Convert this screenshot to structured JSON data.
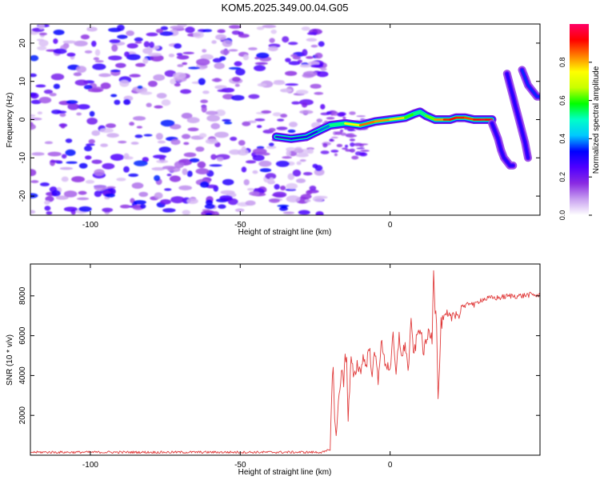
{
  "title": "KOM5.2025.349.00.04.G05",
  "chart_data": [
    {
      "type": "heatmap",
      "name": "spectrogram",
      "xlabel": "Height of straight line (km)",
      "ylabel": "Frequency (Hz)",
      "xlim": [
        -120,
        50
      ],
      "ylim": [
        -25,
        25
      ],
      "xticks": [
        -100,
        -50,
        0
      ],
      "yticks": [
        -20,
        -10,
        0,
        10,
        20
      ],
      "colorbar": {
        "label": "Normalized spectral amplitude",
        "range": [
          0,
          1
        ],
        "ticks": [
          "0.0",
          "0.2",
          "0.4",
          "0.6",
          "0.8"
        ],
        "tick_values": [
          0,
          0.2,
          0.4,
          0.6,
          0.8
        ],
        "colormap": [
          "#ffffff",
          "#c8a0f0",
          "#8a2be2",
          "#5000ff",
          "#0000ff",
          "#00c8ff",
          "#00ffc8",
          "#00ff00",
          "#c8ff00",
          "#ffff00",
          "#ff8000",
          "#ff0000",
          "#ff0066"
        ]
      },
      "noise_region": {
        "x_range": [
          -120,
          -22
        ],
        "y_range": [
          -25,
          25
        ],
        "amplitude_range": [
          0.0,
          0.3
        ]
      },
      "ridge": {
        "x": [
          -38,
          -33,
          -28,
          -24,
          -20,
          -15,
          -10,
          -5,
          0,
          5,
          8,
          10,
          12,
          15,
          18,
          20,
          22,
          25,
          28,
          30,
          32,
          34
        ],
        "y": [
          -4.5,
          -5.0,
          -4.5,
          -3.0,
          -1.5,
          -1.0,
          -1.5,
          -0.5,
          0.0,
          0.5,
          1.5,
          2.0,
          1.0,
          0.0,
          0.0,
          0.0,
          0.5,
          0.5,
          0.0,
          0.0,
          0.0,
          0.0
        ],
        "amplitude": [
          0.25,
          0.3,
          0.3,
          0.3,
          0.45,
          0.6,
          0.9,
          0.8,
          0.85,
          0.7,
          0.5,
          0.55,
          0.5,
          0.75,
          0.9,
          0.9,
          0.95,
          0.85,
          0.9,
          0.95,
          0.95,
          0.9
        ]
      },
      "tails": [
        {
          "x": [
            34,
            35,
            36,
            37,
            38,
            39,
            40,
            41
          ],
          "y": [
            -1,
            -3,
            -5,
            -8,
            -10,
            -11,
            -12,
            -12
          ],
          "amplitude": 0.3
        },
        {
          "x": [
            39,
            40,
            41,
            42,
            43,
            44,
            45,
            46
          ],
          "y": [
            12,
            9,
            6,
            3,
            0,
            -3,
            -6,
            -10
          ],
          "amplitude": 0.3
        },
        {
          "x": [
            44,
            45,
            46,
            47,
            48,
            49,
            50
          ],
          "y": [
            13,
            11,
            9,
            8,
            7,
            6,
            6
          ],
          "amplitude": 0.35
        }
      ]
    },
    {
      "type": "line",
      "name": "snr",
      "xlabel": "Height of straight line (km)",
      "ylabel": "SNR (10 * v/v)",
      "xlim": [
        -120,
        50
      ],
      "ylim": [
        0,
        9600
      ],
      "xticks": [
        -100,
        -50,
        0
      ],
      "yticks": [
        2000,
        4000,
        6000,
        8000
      ],
      "color": "#e03a3a",
      "series": [
        {
          "name": "SNR",
          "x": [
            -120,
            -100,
            -80,
            -60,
            -40,
            -22,
            -20,
            -19.5,
            -19,
            -18.5,
            -18,
            -17,
            -16,
            -15.5,
            -15,
            -14.5,
            -14,
            -13,
            -12,
            -11,
            -10,
            -9,
            -8,
            -7,
            -6,
            -5,
            -4,
            -3,
            -2,
            -1,
            0,
            1,
            2,
            3,
            4,
            5,
            6,
            7,
            8,
            9,
            10,
            11,
            12,
            13,
            14,
            14.5,
            15,
            15.5,
            16,
            17,
            18,
            19,
            20,
            21,
            22,
            23,
            24,
            25,
            26,
            27,
            28,
            30,
            32,
            34,
            36,
            38,
            40,
            42,
            44,
            46,
            48,
            50
          ],
          "values": [
            150,
            150,
            150,
            150,
            150,
            150,
            300,
            2800,
            4700,
            1800,
            800,
            3300,
            4200,
            3700,
            5200,
            4700,
            1800,
            4800,
            3800,
            4600,
            4200,
            4900,
            4500,
            5400,
            4200,
            5100,
            3800,
            5700,
            4800,
            4500,
            4400,
            5900,
            3900,
            6100,
            4800,
            5700,
            4200,
            6600,
            5000,
            6000,
            6500,
            5200,
            5600,
            6300,
            5900,
            9500,
            7300,
            6900,
            2600,
            6600,
            6800,
            7000,
            6800,
            7100,
            7200,
            6900,
            7600,
            7400,
            7600,
            7700,
            7500,
            7800,
            7850,
            7900,
            7900,
            7950,
            8000,
            8000,
            8000,
            8050,
            8050,
            8000
          ]
        }
      ]
    }
  ]
}
